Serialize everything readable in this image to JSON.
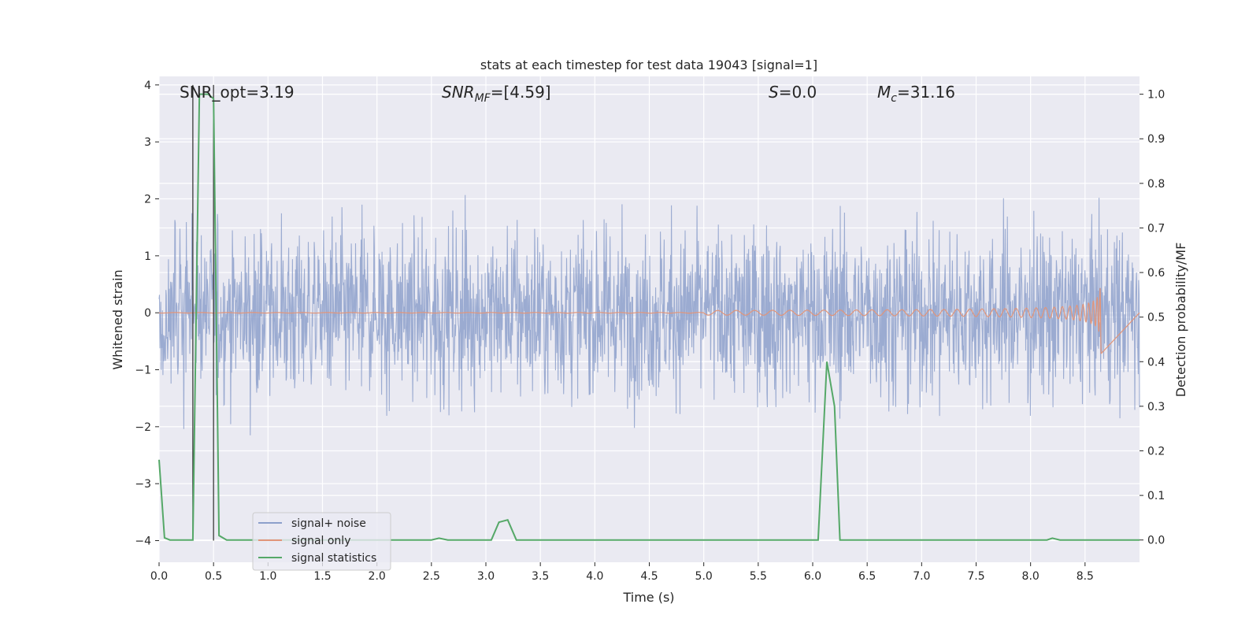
{
  "chart_data": {
    "type": "line",
    "title": "stats at each timestep for test data 19043 [signal=1]",
    "xlabel": "Time (s)",
    "ylabel_left": "Whitened strain",
    "ylabel_right": "Detection probability/MF",
    "xlim": [
      0.0,
      9.0
    ],
    "ylim_left": [
      -4.38,
      4.15
    ],
    "ylim_right": [
      -0.05,
      1.04
    ],
    "x_ticks": [
      "0.0",
      "0.5",
      "1.0",
      "1.5",
      "2.0",
      "2.5",
      "3.0",
      "3.5",
      "4.0",
      "4.5",
      "5.0",
      "5.5",
      "6.0",
      "6.5",
      "7.0",
      "7.5",
      "8.0",
      "8.5"
    ],
    "y_left_ticks": [
      "−4",
      "−3",
      "−2",
      "−1",
      "0",
      "1",
      "2",
      "3",
      "4"
    ],
    "y_right_ticks": [
      "0.0",
      "0.1",
      "0.2",
      "0.3",
      "0.4",
      "0.5",
      "0.6",
      "0.7",
      "0.8",
      "0.9",
      "1.0"
    ],
    "grid": true,
    "annotations": {
      "snr_opt": "SNR_opt=3.19",
      "snr_mf_main": "SNR",
      "snr_mf_sub": "MF",
      "snr_mf_rest": "=[4.59]",
      "s_main": "S",
      "s_rest": "=0.0",
      "mc_main": "M",
      "mc_sub": "c",
      "mc_rest": "=31.16"
    },
    "vertical_lines_x": [
      0.31,
      0.5
    ],
    "series": [
      {
        "name": "signal+ noise",
        "color": "#8da0cb",
        "description_note": "noise band",
        "typical_amplitude": 1.7,
        "peak_amplitude": 3.7
      },
      {
        "name": "signal only",
        "color": "#e1957a",
        "chirp_end_x": 8.65,
        "chirp_peak_amplitude": 0.75
      },
      {
        "name": "signal statistics",
        "color": "#55a868",
        "axis": "right",
        "x": [
          0.0,
          0.05,
          0.1,
          0.2,
          0.3,
          0.31,
          0.37,
          0.45,
          0.5,
          0.55,
          0.62,
          1.0,
          2.0,
          2.5,
          2.57,
          2.65,
          3.0,
          3.05,
          3.12,
          3.2,
          3.28,
          3.5,
          4.0,
          5.0,
          6.0,
          6.05,
          6.13,
          6.2,
          6.25,
          6.5,
          7.0,
          8.0,
          8.15,
          8.2,
          8.27,
          8.5,
          9.0
        ],
        "y": [
          0.18,
          0.005,
          0.0,
          0.0,
          0.0,
          0.0,
          1.0,
          1.0,
          0.99,
          0.01,
          0.0,
          0.0,
          0.0,
          0.0,
          0.004,
          0.0,
          0.0,
          0.0,
          0.04,
          0.045,
          0.0,
          0.0,
          0.0,
          0.0,
          0.0,
          0.0,
          0.4,
          0.3,
          0.0,
          0.0,
          0.0,
          0.0,
          0.0,
          0.004,
          0.0,
          0.0,
          0.0
        ]
      }
    ],
    "legend": {
      "placement": "lower-left",
      "entries": [
        "signal+ noise",
        "signal only",
        "signal statistics"
      ]
    }
  }
}
